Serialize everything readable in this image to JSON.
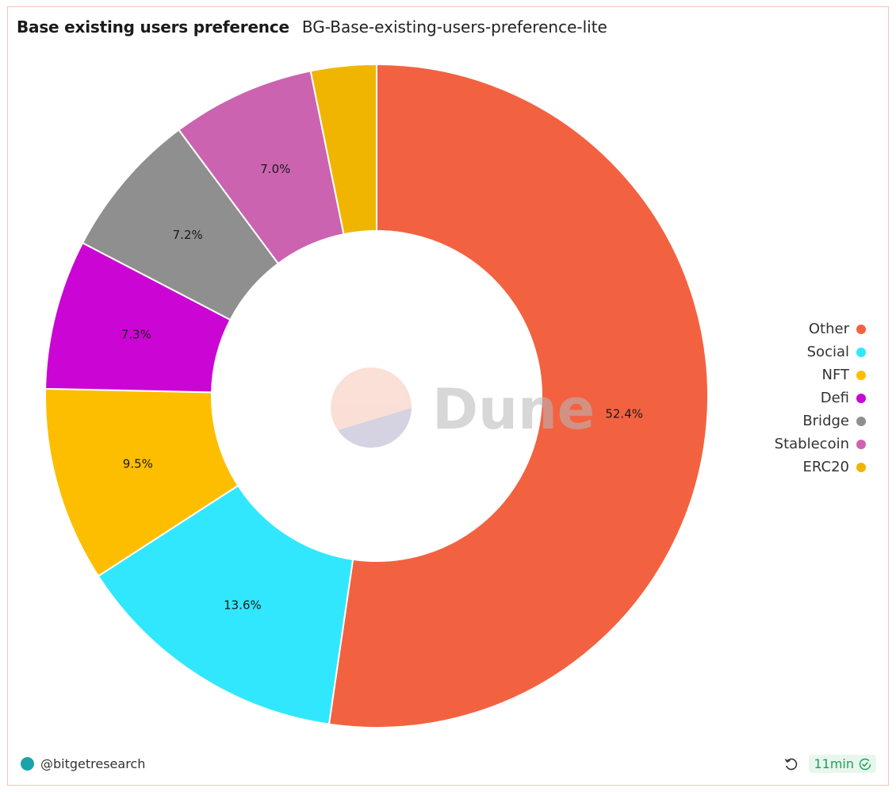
{
  "header": {
    "title": "Base existing users preference",
    "subtitle": "BG-Base-existing-users-preference-lite"
  },
  "chart_data": {
    "type": "pie",
    "style": "donut",
    "legend_position": "right",
    "start_angle_deg": 0,
    "direction": "clockwise",
    "slices": [
      {
        "label": "Other",
        "value": 52.4,
        "display": "52.4%",
        "color": "#f26241"
      },
      {
        "label": "Social",
        "value": 13.6,
        "display": "13.6%",
        "color": "#31e7fe"
      },
      {
        "label": "NFT",
        "value": 9.5,
        "display": "9.5%",
        "color": "#fdbe00"
      },
      {
        "label": "Defi",
        "value": 7.3,
        "display": "7.3%",
        "color": "#cb05d3"
      },
      {
        "label": "Bridge",
        "value": 7.2,
        "display": "7.2%",
        "color": "#8f8f8f"
      },
      {
        "label": "Stablecoin",
        "value": 7.0,
        "display": "7.0%",
        "color": "#cb63b0"
      },
      {
        "label": "ERC20",
        "value": 3.2,
        "display": "",
        "color": "#f0b500"
      }
    ]
  },
  "watermark": {
    "text": "Dune"
  },
  "footer": {
    "author": "@bitgetresearch",
    "refresh_badge": "11min",
    "icons": {
      "refresh": "refresh-icon",
      "check": "check-circle-icon",
      "avatar": "avatar"
    }
  }
}
